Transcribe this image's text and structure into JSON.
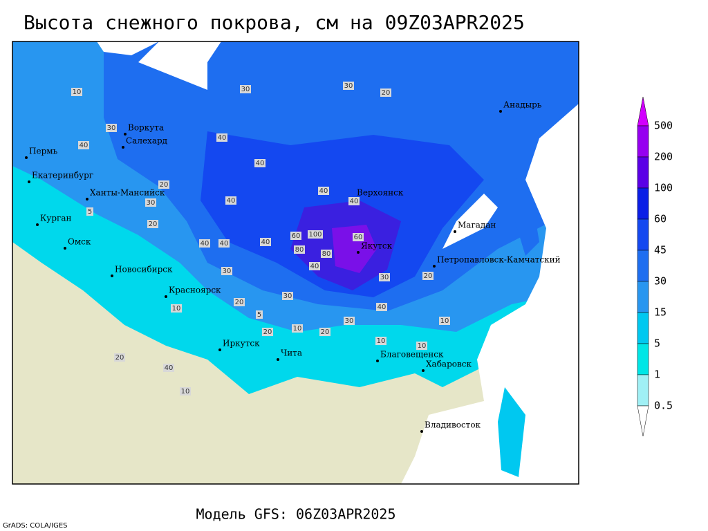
{
  "header": {
    "title": "Высота снежного покрова, см на 09Z03APR2025"
  },
  "footer": {
    "model": "Модель GFS: 06Z03APR2025",
    "credit": "GrADS: COLA/IGES"
  },
  "legend": {
    "levels": [
      "0.5",
      "1",
      "5",
      "15",
      "30",
      "45",
      "60",
      "100",
      "200",
      "500"
    ],
    "colors": [
      "#ffffff",
      "#a0f0f5",
      "#00e6e6",
      "#00c8f0",
      "#2896f0",
      "#1e6ef0",
      "#1448f0",
      "#0a1ee6",
      "#5a00e6",
      "#9600f0",
      "#d200ff"
    ]
  },
  "cities": [
    "Воркута",
    "Салехард",
    "Пермь",
    "Екатеринбург",
    "Ханты-Мансийск",
    "Курган",
    "Омск",
    "Новосибирск",
    "Красноярск",
    "Иркутск",
    "Чита",
    "Верхоянск",
    "Якутск",
    "Магадан",
    "Петропавловск-Камчатский",
    "Анадырь",
    "Благовещенск",
    "Хабаровск",
    "Владивосток"
  ],
  "contour_labels": [
    "10",
    "30",
    "40",
    "40",
    "30",
    "20",
    "30",
    "20",
    "20",
    "30",
    "40",
    "40",
    "40",
    "20",
    "40",
    "40",
    "40",
    "40",
    "100",
    "60",
    "60",
    "80",
    "80",
    "40",
    "30",
    "20",
    "30",
    "30",
    "40",
    "30",
    "10",
    "20",
    "10",
    "10",
    "10",
    "5",
    "10",
    "20",
    "40",
    "10",
    "20",
    "5"
  ]
}
